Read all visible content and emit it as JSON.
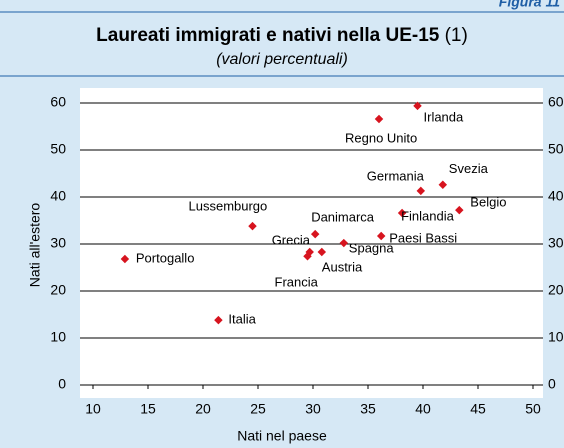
{
  "figure_label": "Figura 11",
  "chart_data": {
    "type": "scatter",
    "title": "Laureati immigrati e nativi nella UE-15",
    "title_note": "(1)",
    "subtitle": "(valori percentuali)",
    "x_label": "Nati nel paese",
    "y_label": "Nati all'estero",
    "color": "#d7141f",
    "grid": true,
    "labels": [
      "Irlanda",
      "Regno Unito",
      "Svezia",
      "Germania",
      "Belgio",
      "Finlandia",
      "Lussemburgo",
      "Danimarca",
      "Paesi Bassi",
      "Spagna",
      "Grecia",
      "Austria",
      "Francia",
      "Portogallo",
      "Italia"
    ],
    "x": [
      39.5,
      36.0,
      41.8,
      39.8,
      43.3,
      38.1,
      24.5,
      30.2,
      36.2,
      32.8,
      29.7,
      30.8,
      29.5,
      12.9,
      21.4
    ],
    "y": [
      59.4,
      56.6,
      42.6,
      41.3,
      37.2,
      36.6,
      33.8,
      32.1,
      31.7,
      30.2,
      28.3,
      28.3,
      27.4,
      26.8,
      13.8
    ],
    "xlim": [
      10,
      50
    ],
    "xticks": [
      10,
      15,
      20,
      25,
      30,
      35,
      40,
      45,
      50
    ],
    "ylim": [
      0,
      60
    ],
    "yticks": [
      0,
      10,
      20,
      30,
      40,
      50,
      60
    ],
    "y2lim": [
      0,
      60
    ],
    "y2ticks": [
      0,
      10,
      20,
      30,
      40,
      50,
      60
    ]
  }
}
